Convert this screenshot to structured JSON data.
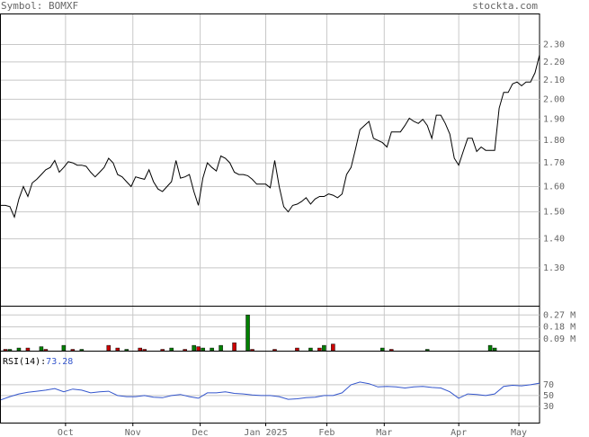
{
  "header": {
    "symbol": "Symbol: BOMXF",
    "site": "stockta.com"
  },
  "chart_data": [
    {
      "type": "line",
      "log_scale": true,
      "color": "#000000",
      "grid": true,
      "xlim": [
        0,
        120
      ],
      "values": [
        1.525,
        1.525,
        1.52,
        1.48,
        1.55,
        1.6,
        1.56,
        1.615,
        1.63,
        1.65,
        1.67,
        1.68,
        1.71,
        1.66,
        1.68,
        1.705,
        1.7,
        1.69,
        1.69,
        1.685,
        1.66,
        1.64,
        1.66,
        1.68,
        1.72,
        1.7,
        1.65,
        1.64,
        1.62,
        1.6,
        1.64,
        1.635,
        1.63,
        1.67,
        1.62,
        1.59,
        1.58,
        1.6,
        1.62,
        1.71,
        1.635,
        1.64,
        1.65,
        1.58,
        1.525,
        1.635,
        1.7,
        1.68,
        1.665,
        1.73,
        1.72,
        1.7,
        1.66,
        1.65,
        1.65,
        1.645,
        1.63,
        1.61,
        1.61,
        1.61,
        1.595,
        1.71,
        1.6,
        1.52,
        1.5,
        1.525,
        1.53,
        1.54,
        1.555,
        1.53,
        1.55,
        1.56,
        1.56,
        1.57,
        1.565,
        1.555,
        1.57,
        1.65,
        1.68,
        1.76,
        1.85,
        1.87,
        1.89,
        1.81,
        1.8,
        1.79,
        1.77,
        1.84,
        1.84,
        1.84,
        1.87,
        1.905,
        1.89,
        1.88,
        1.9,
        1.87,
        1.81,
        1.92,
        1.92,
        1.88,
        1.83,
        1.72,
        1.69,
        1.75,
        1.81,
        1.81,
        1.75,
        1.77,
        1.755,
        1.755,
        1.755,
        1.955,
        2.035,
        2.035,
        2.08,
        2.09,
        2.07,
        2.09,
        2.09,
        2.14,
        2.24
      ],
      "ylim": [
        1.18,
        2.49
      ],
      "yticks": [
        {
          "value": 1.3,
          "label": "1.30"
        },
        {
          "value": 1.4,
          "label": "1.40"
        },
        {
          "value": 1.5,
          "label": "1.50"
        },
        {
          "value": 1.6,
          "label": "1.60"
        },
        {
          "value": 1.7,
          "label": "1.70"
        },
        {
          "value": 1.8,
          "label": "1.80"
        },
        {
          "value": 1.9,
          "label": "1.90"
        },
        {
          "value": 2.0,
          "label": "2.00"
        },
        {
          "value": 2.1,
          "label": "2.10"
        },
        {
          "value": 2.2,
          "label": "2.20"
        },
        {
          "value": 2.3,
          "label": "2.30"
        }
      ]
    },
    {
      "type": "bar",
      "grid": true,
      "xlim": [
        0,
        120
      ],
      "x": [
        1,
        2,
        4,
        6,
        9,
        10,
        14,
        16,
        18,
        24,
        26,
        28,
        31,
        32,
        36,
        38,
        41,
        43,
        44,
        45,
        47,
        49,
        52,
        55,
        56,
        61,
        66,
        69,
        71,
        72,
        74,
        85,
        87,
        95,
        109,
        110
      ],
      "values": [
        0.01,
        0.01,
        0.02,
        0.02,
        0.03,
        0.01,
        0.04,
        0.01,
        0.01,
        0.04,
        0.02,
        0.01,
        0.02,
        0.01,
        0.01,
        0.02,
        0.01,
        0.04,
        0.03,
        0.02,
        0.02,
        0.04,
        0.06,
        0.27,
        0.01,
        0.01,
        0.02,
        0.02,
        0.02,
        0.04,
        0.05,
        0.02,
        0.01,
        0.01,
        0.04,
        0.02
      ],
      "colors": [
        "#cc0000",
        "#008000",
        "#008000",
        "#cc0000",
        "#008000",
        "#cc0000",
        "#008000",
        "#cc0000",
        "#008000",
        "#cc0000",
        "#cc0000",
        "#008000",
        "#cc0000",
        "#cc0000",
        "#cc0000",
        "#008000",
        "#cc0000",
        "#008000",
        "#cc0000",
        "#008000",
        "#008000",
        "#008000",
        "#cc0000",
        "#008000",
        "#cc0000",
        "#cc0000",
        "#cc0000",
        "#008000",
        "#cc0000",
        "#008000",
        "#cc0000",
        "#008000",
        "#cc0000",
        "#008000",
        "#008000",
        "#008000"
      ],
      "ylim": [
        0,
        0.34
      ],
      "yticks": [
        {
          "value": 0.09,
          "label": "0.09 M"
        },
        {
          "value": 0.18,
          "label": "0.18 M"
        },
        {
          "value": 0.27,
          "label": "0.27 M"
        }
      ]
    },
    {
      "type": "line",
      "label": "RSI(14):",
      "last": 73.28,
      "color": "#3355cc",
      "grid": true,
      "xlim": [
        0,
        120
      ],
      "x": [
        0,
        2,
        4,
        6,
        8,
        10,
        12,
        14,
        16,
        18,
        20,
        22,
        24,
        26,
        28,
        30,
        32,
        34,
        36,
        38,
        40,
        42,
        44,
        46,
        48,
        50,
        52,
        54,
        56,
        58,
        60,
        62,
        64,
        66,
        68,
        70,
        72,
        74,
        76,
        78,
        80,
        82,
        84,
        86,
        88,
        90,
        92,
        94,
        96,
        98,
        100,
        102,
        104,
        106,
        108,
        110,
        112,
        114,
        116,
        118,
        120
      ],
      "values": [
        42,
        48,
        53,
        56,
        58,
        60,
        63,
        57,
        62,
        60,
        55,
        57,
        58,
        50,
        48,
        48,
        50,
        47,
        46,
        50,
        52,
        48,
        45,
        55,
        55,
        57,
        54,
        53,
        51,
        50,
        50,
        48,
        43,
        44,
        46,
        47,
        50,
        50,
        55,
        70,
        75,
        72,
        66,
        67,
        66,
        64,
        66,
        67,
        65,
        64,
        57,
        45,
        53,
        52,
        50,
        53,
        67,
        69,
        68,
        70,
        73
      ],
      "ylim": [
        0,
        133
      ],
      "yticks": [
        30,
        50,
        70
      ],
      "xticks": [
        {
          "value": 14.4,
          "label": "Oct"
        },
        {
          "value": 29.4,
          "label": "Nov"
        },
        {
          "value": 44.4,
          "label": "Dec"
        },
        {
          "value": 59,
          "label": "Jan 2025"
        },
        {
          "value": 72.6,
          "label": "Feb"
        },
        {
          "value": 85.4,
          "label": "Mar"
        },
        {
          "value": 102,
          "label": "Apr"
        },
        {
          "value": 115.4,
          "label": "May"
        }
      ]
    }
  ]
}
